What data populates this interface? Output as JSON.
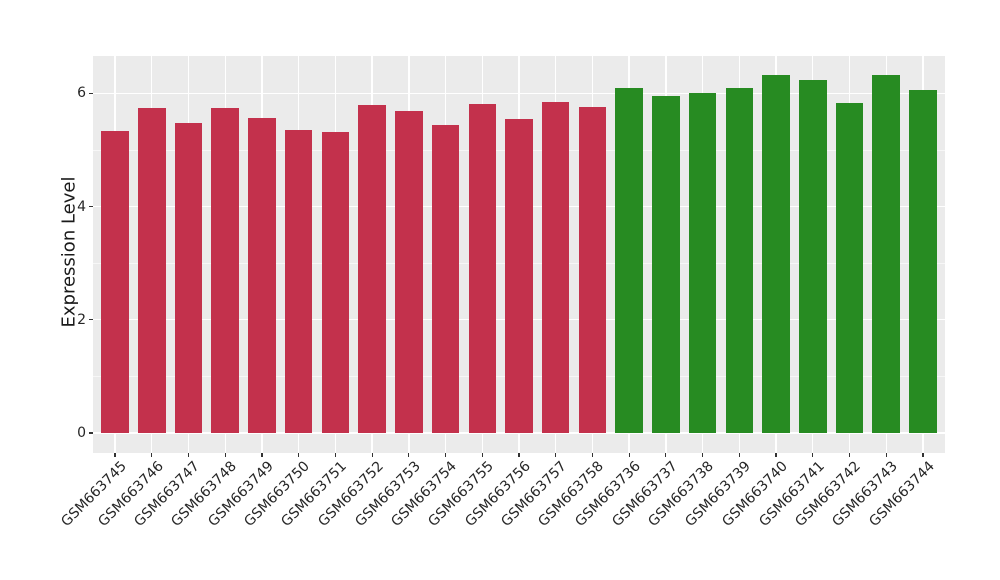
{
  "chart_data": {
    "type": "bar",
    "title": "",
    "xlabel": "",
    "ylabel": "Expression Level",
    "categories": [
      "GSM663745",
      "GSM663746",
      "GSM663747",
      "GSM663748",
      "GSM663749",
      "GSM663750",
      "GSM663751",
      "GSM663752",
      "GSM663753",
      "GSM663754",
      "GSM663755",
      "GSM663756",
      "GSM663757",
      "GSM663758",
      "GSM663736",
      "GSM663737",
      "GSM663738",
      "GSM663739",
      "GSM663740",
      "GSM663741",
      "GSM663742",
      "GSM663743",
      "GSM663744"
    ],
    "values": [
      5.33,
      5.75,
      5.48,
      5.74,
      5.57,
      5.35,
      5.31,
      5.8,
      5.69,
      5.44,
      5.82,
      5.55,
      5.84,
      5.76,
      6.09,
      5.96,
      6.01,
      6.09,
      6.33,
      6.23,
      5.83,
      6.33,
      6.06
    ],
    "groups": [
      "red",
      "red",
      "red",
      "red",
      "red",
      "red",
      "red",
      "red",
      "red",
      "red",
      "red",
      "red",
      "red",
      "red",
      "green",
      "green",
      "green",
      "green",
      "green",
      "green",
      "green",
      "green",
      "green"
    ],
    "group_colors": {
      "red": "#C3314C",
      "green": "#278B22"
    },
    "yticks": [
      0,
      2,
      4,
      6
    ],
    "minor_yticks": [
      1,
      3,
      5
    ],
    "ylim": [
      0,
      6.66
    ],
    "grid": "on",
    "legend": "none",
    "panel_background": "#EBEBEB",
    "gridline_color": "#FFFFFF",
    "tick_color": "#333333",
    "text_color": "#262626"
  }
}
